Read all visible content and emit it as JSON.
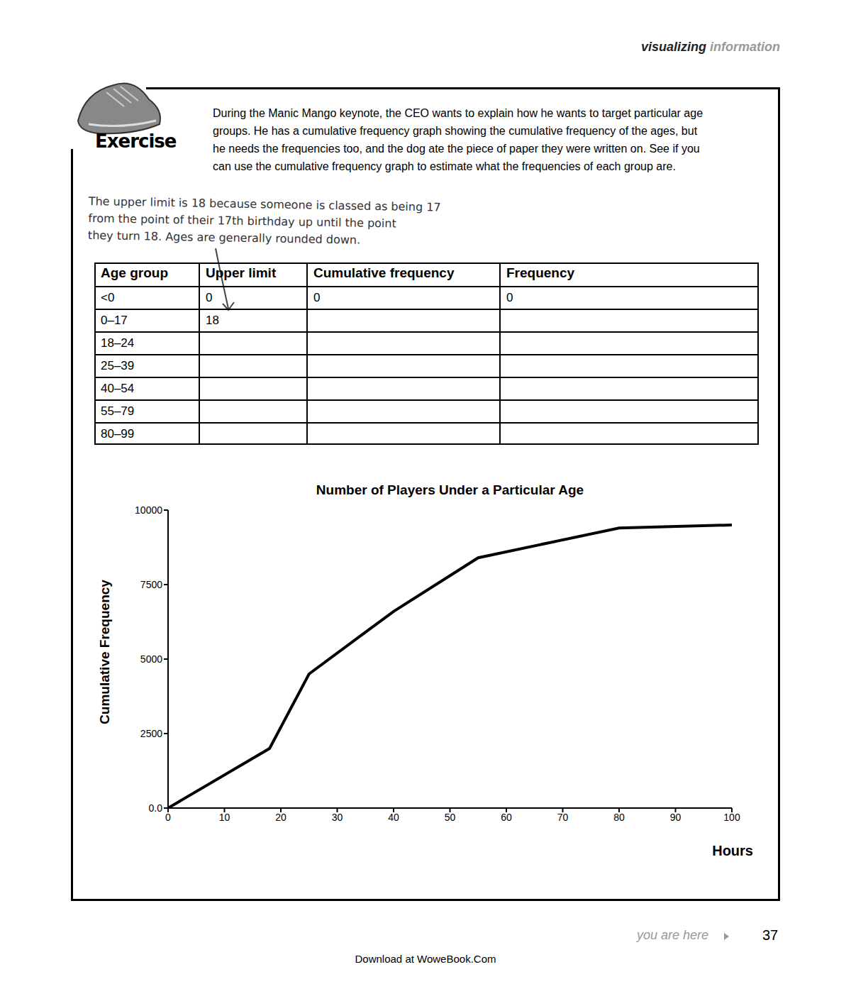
{
  "header": {
    "bold": "visualizing",
    "light": "information"
  },
  "exercise": {
    "label": "Exercise",
    "lines": [
      "During the Manic Mango keynote, the CEO wants to explain how he wants to target particular age",
      "groups. He has a cumulative frequency graph showing the cumulative frequency of the ages, but",
      "he needs the frequencies too, and the dog ate the piece of paper they were written on. See if you",
      "can use the cumulative frequency graph to estimate what the frequencies of each group are."
    ]
  },
  "annotation": [
    "The upper limit is 18 because someone is classed as being 17",
    "from the point of their 17th birthday up until the point",
    "they turn 18. Ages are generally rounded down."
  ],
  "table": {
    "columns": [
      "Age group",
      "Upper limit",
      "Cumulative frequency",
      "Frequency"
    ],
    "rows": [
      [
        "<0",
        "0",
        "0",
        "0"
      ],
      [
        "0–17",
        "18",
        null,
        null
      ],
      [
        "18–24",
        null,
        null,
        null
      ],
      [
        "25–39",
        null,
        null,
        null
      ],
      [
        "40–54",
        null,
        null,
        null
      ],
      [
        "55–79",
        null,
        null,
        null
      ],
      [
        "80–99",
        null,
        null,
        null
      ]
    ]
  },
  "chart_data": {
    "type": "line",
    "title": "Number of Players Under a Particular Age",
    "x_label": "Hours",
    "y_label": "Cumulative Frequency",
    "x": [
      0,
      18,
      25,
      40,
      55,
      80,
      100
    ],
    "values": [
      0,
      2000,
      4500,
      6600,
      8400,
      9400,
      9500
    ],
    "color": "#000000",
    "xlim": [
      0,
      100
    ],
    "xticks": [
      0,
      10,
      20,
      30,
      40,
      50,
      60,
      70,
      80,
      90,
      100
    ],
    "ylim": [
      0,
      10000
    ],
    "yticks": [
      {
        "value": 0,
        "label": "0.0"
      },
      2500,
      5000,
      7500,
      10000
    ],
    "grid": false
  },
  "footer": {
    "text": "you are here",
    "page": 37,
    "download": "Download at WoweBook.Com"
  }
}
